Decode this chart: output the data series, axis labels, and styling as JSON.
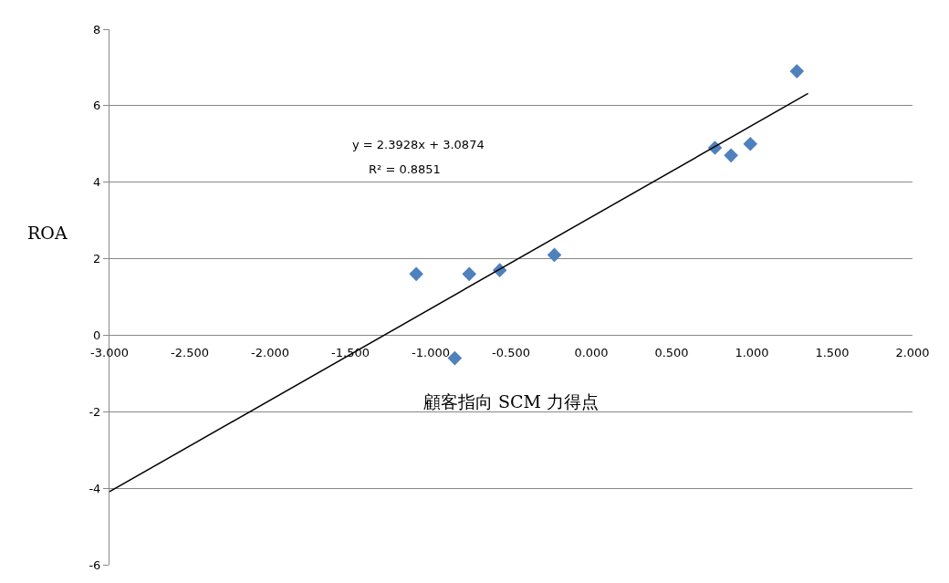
{
  "chart_data": {
    "type": "scatter",
    "xlabel": "顧客指向 SCM 力得点",
    "ylabel": "ROA",
    "annotations": [
      "y = 2.3928x + 3.0874",
      "R² = 0.8851"
    ],
    "series": [
      {
        "color": "#4f81bd",
        "marker": "diamond",
        "x": [
          -1.09,
          -0.85,
          -0.76,
          -0.57,
          -0.23,
          0.77,
          0.87,
          0.99,
          1.28
        ],
        "values": [
          1.6,
          -0.6,
          1.6,
          1.7,
          2.1,
          4.9,
          4.7,
          5.0,
          6.9
        ]
      },
      {
        "type": "line",
        "color": "#000000",
        "marker": "none",
        "line_style": "solid",
        "x": [
          -3.0,
          1.35
        ],
        "values": [
          -4.09,
          6.32
        ]
      }
    ],
    "xlim": [
      -3,
      2
    ],
    "xticks": [
      {
        "value": -3,
        "label": "-3.000"
      },
      {
        "value": -2.5,
        "label": "-2.500"
      },
      {
        "value": -2,
        "label": "-2.000"
      },
      {
        "value": -1.5,
        "label": "-1.500"
      },
      {
        "value": -1,
        "label": "-1.000"
      },
      {
        "value": -0.5,
        "label": "-0.500"
      },
      {
        "value": 0,
        "label": "0.000"
      },
      {
        "value": 0.5,
        "label": "0.500"
      },
      {
        "value": 1,
        "label": "1.000"
      },
      {
        "value": 1.5,
        "label": "1.500"
      },
      {
        "value": 2,
        "label": "2.000"
      }
    ],
    "ylim": [
      -6,
      8
    ],
    "yticks": [
      -6,
      -4,
      -2,
      0,
      2,
      4,
      6,
      8
    ],
    "grid": "y"
  }
}
